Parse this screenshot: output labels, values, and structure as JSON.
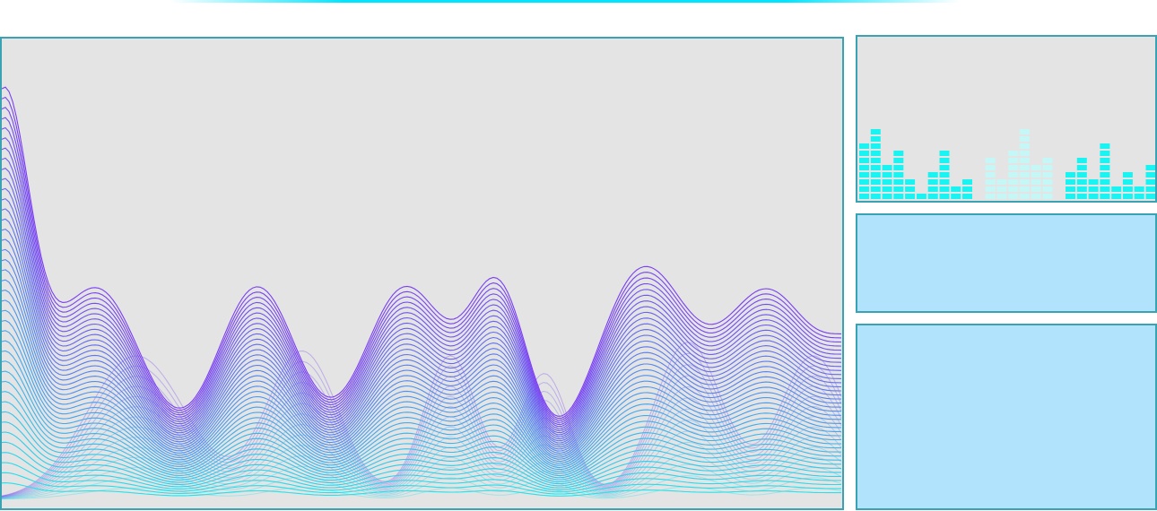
{
  "colors": {
    "accent": "#00e5ff",
    "panel_border": "#3aa3b3",
    "panel_bg": "#e4e4e4",
    "info_panel_bg": "#b1e3fd",
    "wave_top": "#7b3ff2",
    "wave_bottom": "#22e3ea",
    "eq_bar": "#19f4f2",
    "eq_bar_faded": "#c5f7f6"
  },
  "waveform_display": {
    "line_count": 40,
    "ghost_line_count": 14
  },
  "equalizer": {
    "bar_levels": [
      8,
      10,
      5,
      7,
      3,
      1,
      4,
      7,
      2,
      3,
      0,
      6,
      3,
      7,
      10,
      5,
      6,
      0,
      4,
      6,
      3,
      8,
      2,
      4,
      2,
      5,
      2
    ],
    "faded_bar_indices": [
      11,
      12,
      13,
      14,
      15,
      16
    ]
  },
  "info_panel_top": {},
  "info_panel_bottom": {}
}
